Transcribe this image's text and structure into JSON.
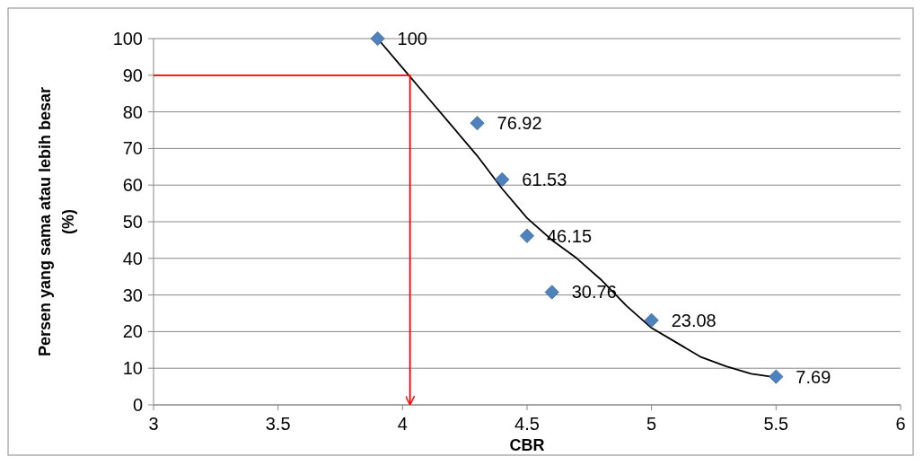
{
  "chart_data": {
    "type": "scatter",
    "xlabel": "CBR",
    "ylabel": "Persen yang sama atau lebih besar (%)",
    "xlim": [
      3,
      6
    ],
    "xticks": [
      3,
      3.5,
      4,
      4.5,
      5,
      5.5,
      6
    ],
    "ylim": [
      0,
      100
    ],
    "yticks": [
      0,
      10,
      20,
      30,
      40,
      50,
      60,
      70,
      80,
      90,
      100
    ],
    "grid": "y",
    "marker": "diamond",
    "series": [
      {
        "color": "#4f81bd",
        "x": [
          3.9,
          4.3,
          4.4,
          4.5,
          4.6,
          5.0,
          5.5
        ],
        "values": [
          100,
          76.92,
          61.53,
          46.15,
          30.76,
          23.08,
          7.69
        ],
        "value_labels": [
          "100",
          "76.92",
          "61.53",
          "46.15",
          "30.76",
          "23.08",
          "7.69"
        ]
      },
      {
        "type": "line",
        "color": "#000000",
        "marker": "none",
        "x": [
          3.9,
          4.0,
          4.1,
          4.2,
          4.3,
          4.4,
          4.5,
          4.6,
          4.7,
          4.8,
          4.9,
          5.0,
          5.1,
          5.2,
          5.3,
          5.4,
          5.5
        ],
        "values": [
          100,
          92,
          84,
          76,
          68,
          59,
          51,
          45,
          40,
          34,
          27,
          21,
          17,
          13,
          10.5,
          8.5,
          7.5
        ]
      },
      {
        "type": "line",
        "color": "#ff0000",
        "marker": "none",
        "x": [
          3,
          4.03,
          4.03
        ],
        "values": [
          90,
          90,
          0
        ]
      }
    ]
  }
}
